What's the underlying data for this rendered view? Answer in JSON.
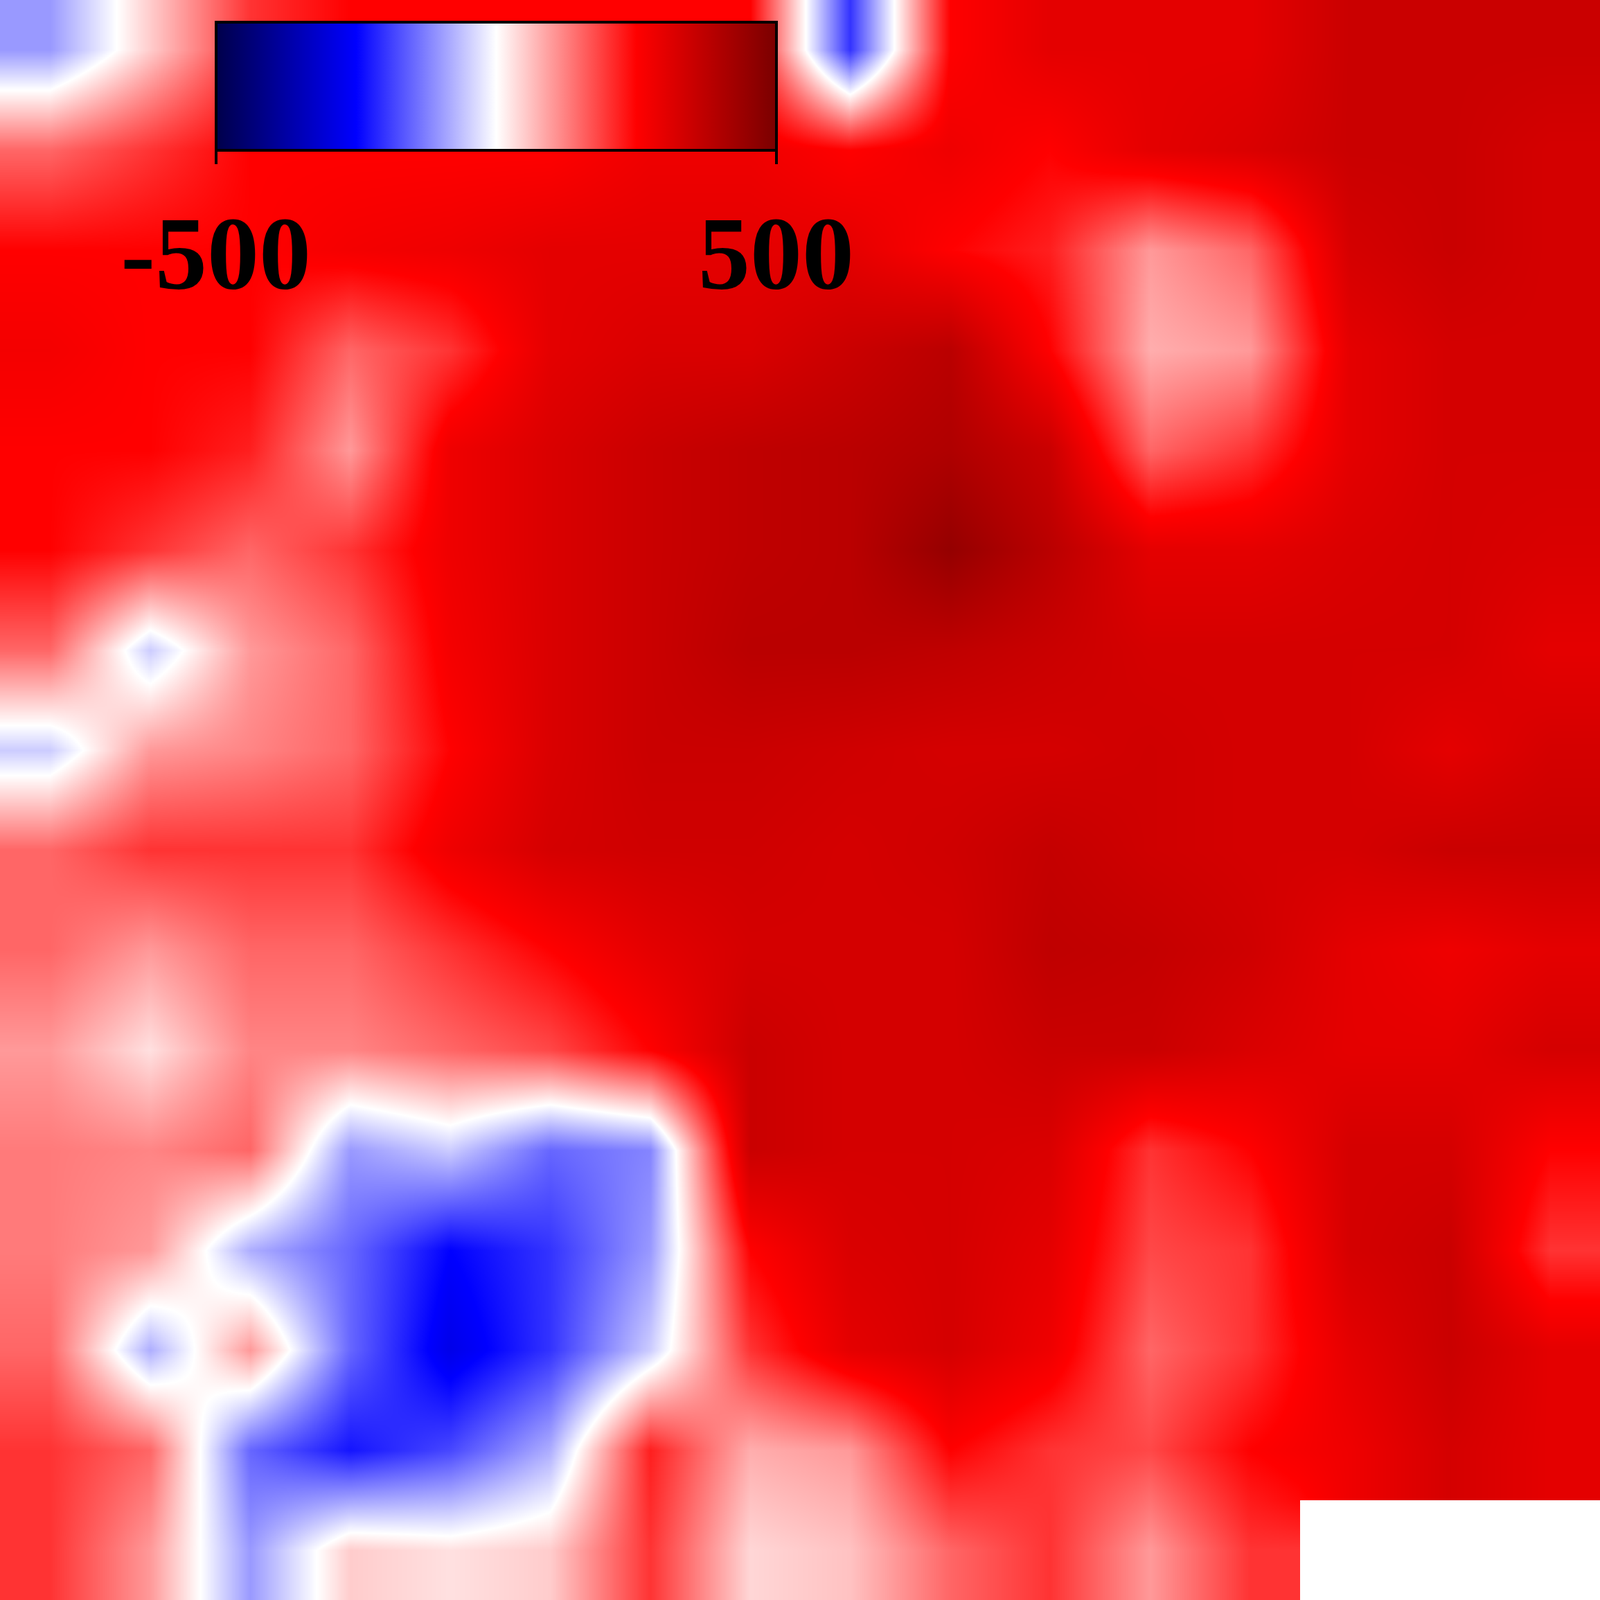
{
  "chart_data": {
    "type": "heatmap",
    "tick_labels": false,
    "zlim": [
      -500,
      500
    ],
    "colorbar_ticks": [
      -500,
      500
    ],
    "z": [
      [
        -100,
        50,
        200,
        250,
        250,
        250,
        250,
        250,
        -200,
        250,
        300,
        300,
        300,
        350,
        350,
        350
      ],
      [
        150,
        200,
        250,
        250,
        250,
        250,
        280,
        280,
        250,
        280,
        250,
        300,
        320,
        350,
        350,
        330
      ],
      [
        250,
        250,
        250,
        270,
        280,
        300,
        300,
        300,
        300,
        250,
        220,
        100,
        150,
        330,
        350,
        330
      ],
      [
        270,
        250,
        250,
        150,
        200,
        300,
        320,
        320,
        350,
        380,
        250,
        80,
        100,
        300,
        330,
        330
      ],
      [
        250,
        250,
        220,
        100,
        280,
        320,
        350,
        370,
        380,
        400,
        350,
        150,
        200,
        300,
        330,
        330
      ],
      [
        250,
        200,
        150,
        200,
        280,
        320,
        350,
        370,
        380,
        450,
        380,
        300,
        300,
        320,
        330,
        320
      ],
      [
        150,
        -50,
        100,
        150,
        270,
        320,
        350,
        380,
        380,
        370,
        350,
        330,
        330,
        330,
        330,
        300
      ],
      [
        -50,
        100,
        120,
        150,
        250,
        320,
        350,
        350,
        340,
        330,
        330,
        340,
        330,
        330,
        300,
        330
      ],
      [
        150,
        200,
        200,
        200,
        280,
        330,
        340,
        340,
        330,
        340,
        360,
        340,
        330,
        330,
        350,
        350
      ],
      [
        150,
        100,
        150,
        150,
        200,
        250,
        300,
        330,
        330,
        330,
        370,
        360,
        340,
        300,
        280,
        300
      ],
      [
        100,
        30,
        120,
        120,
        150,
        180,
        250,
        350,
        330,
        330,
        350,
        350,
        320,
        300,
        300,
        330
      ],
      [
        130,
        120,
        150,
        -100,
        -50,
        -150,
        -120,
        350,
        330,
        330,
        320,
        200,
        250,
        330,
        330,
        250
      ],
      [
        130,
        100,
        -80,
        -150,
        -250,
        -200,
        -100,
        250,
        320,
        330,
        300,
        180,
        200,
        330,
        350,
        200
      ],
      [
        150,
        -80,
        100,
        -150,
        -280,
        -200,
        -50,
        200,
        300,
        330,
        280,
        150,
        200,
        300,
        350,
        300
      ],
      [
        200,
        150,
        -150,
        -230,
        -180,
        -80,
        220,
        80,
        100,
        250,
        200,
        180,
        250,
        280,
        330,
        300
      ],
      [
        200,
        100,
        -100,
        50,
        30,
        50,
        200,
        40,
        60,
        150,
        200,
        100,
        200,
        null,
        null,
        null
      ]
    ]
  }
}
